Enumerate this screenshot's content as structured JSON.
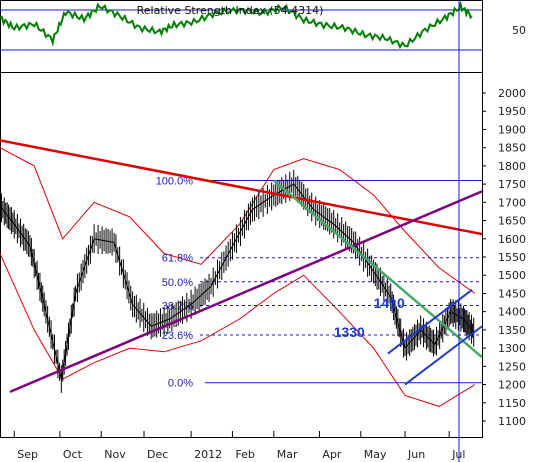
{
  "chart_data": [
    {
      "type": "line",
      "title": "Relative Strength Index (54.4314)",
      "y_tick_labels": [
        "50"
      ],
      "reference_lines": [
        30,
        70
      ],
      "ylim": [
        20,
        80
      ],
      "series": [
        {
          "color": "#008000",
          "x": [
            "2011-08-22",
            "2011-09-01",
            "2011-09-15",
            "2011-09-28",
            "2011-10-07",
            "2011-10-20",
            "2011-10-31",
            "2011-11-14",
            "2011-11-28",
            "2011-12-12",
            "2011-12-22",
            "2012-01-05",
            "2012-01-20",
            "2012-02-06",
            "2012-02-22",
            "2012-03-08",
            "2012-03-22",
            "2012-04-05",
            "2012-04-20",
            "2012-05-04",
            "2012-05-18",
            "2012-06-01",
            "2012-06-15",
            "2012-06-29",
            "2012-07-10",
            "2012-07-18"
          ],
          "values": [
            62,
            52,
            56,
            40,
            68,
            61,
            74,
            64,
            52,
            48,
            55,
            58,
            67,
            70,
            67,
            73,
            60,
            55,
            52,
            45,
            42,
            34,
            50,
            62,
            73,
            64
          ]
        }
      ]
    },
    {
      "type": "line",
      "y_tick_labels": [
        "2000",
        "1950",
        "1900",
        "1850",
        "1800",
        "1750",
        "1700",
        "1650",
        "1600",
        "1550",
        "1500",
        "1450",
        "1400",
        "1350",
        "1300",
        "1250",
        "1200",
        "1150",
        "1100"
      ],
      "ylim": [
        1070,
        2040
      ],
      "x_tick_labels": [
        "Sep",
        "Oct",
        "Nov",
        "Dec",
        "2012",
        "Feb",
        "Mar",
        "Apr",
        "May",
        "Jun",
        "Jul"
      ],
      "x_tick_dates": [
        "2011-09-01",
        "2011-10-03",
        "2011-11-01",
        "2011-12-01",
        "2012-01-03",
        "2012-02-01",
        "2012-03-01",
        "2012-04-02",
        "2012-05-01",
        "2012-06-01",
        "2012-07-02"
      ],
      "x_range": [
        "2011-08-22",
        "2012-07-25"
      ],
      "fibonacci": {
        "levels": [
          {
            "label": "100.0%",
            "value": 1760
          },
          {
            "label": "61.8%",
            "value": 1548
          },
          {
            "label": "50.0%",
            "value": 1482
          },
          {
            "label": "38.2%",
            "value": 1417
          },
          {
            "label": "23.6%",
            "value": 1336
          },
          {
            "label": "0.0%",
            "value": 1205
          }
        ],
        "start": "2012-03-01"
      },
      "annotations": [
        {
          "text": "1410",
          "x": "2012-05-10",
          "y": 1410
        },
        {
          "text": "1330",
          "x": "2012-04-12",
          "y": 1330
        }
      ],
      "trendlines": [
        {
          "name": "downtrend",
          "color": "#e00000",
          "points": [
            [
              "2011-08-22",
              1870
            ],
            [
              "2012-07-25",
              1613
            ]
          ]
        },
        {
          "name": "uptrend",
          "color": "#800080",
          "points": [
            [
              "2011-08-29",
              1180
            ],
            [
              "2012-07-25",
              1730
            ]
          ]
        },
        {
          "name": "decline",
          "color": "#44aa66",
          "points": [
            [
              "2012-03-01",
              1760
            ],
            [
              "2012-07-25",
              1275
            ]
          ]
        },
        {
          "name": "channel-upper",
          "color": "#1a3bd4",
          "points": [
            [
              "2012-05-20",
              1285
            ],
            [
              "2012-07-18",
              1460
            ]
          ]
        },
        {
          "name": "channel-lower",
          "color": "#1a3bd4",
          "points": [
            [
              "2012-06-01",
              1200
            ],
            [
              "2012-07-25",
              1360
            ]
          ]
        }
      ],
      "price": {
        "color": "#000000",
        "x": [
          "2011-08-22",
          "2011-09-01",
          "2011-09-12",
          "2011-09-22",
          "2011-10-04",
          "2011-10-14",
          "2011-10-27",
          "2011-11-10",
          "2011-11-23",
          "2011-12-06",
          "2011-12-19",
          "2012-01-03",
          "2012-01-17",
          "2012-02-01",
          "2012-02-15",
          "2012-03-01",
          "2012-03-15",
          "2012-03-29",
          "2012-04-12",
          "2012-04-26",
          "2012-05-10",
          "2012-05-22",
          "2012-06-01",
          "2012-06-12",
          "2012-06-22",
          "2012-07-03",
          "2012-07-12",
          "2012-07-20"
        ],
        "values": [
          1690,
          1640,
          1580,
          1420,
          1215,
          1450,
          1600,
          1590,
          1420,
          1360,
          1380,
          1420,
          1470,
          1580,
          1680,
          1720,
          1750,
          1680,
          1640,
          1590,
          1510,
          1440,
          1300,
          1350,
          1310,
          1400,
          1380,
          1340
        ]
      },
      "bollinger": {
        "color": "#e00000",
        "x": [
          "2011-08-22",
          "2011-09-15",
          "2011-10-05",
          "2011-10-27",
          "2011-11-21",
          "2011-12-15",
          "2012-01-10",
          "2012-02-06",
          "2012-03-01",
          "2012-03-22",
          "2012-04-16",
          "2012-05-10",
          "2012-06-01",
          "2012-06-25",
          "2012-07-20"
        ],
        "upper": [
          1850,
          1800,
          1600,
          1700,
          1660,
          1560,
          1530,
          1640,
          1790,
          1820,
          1790,
          1720,
          1620,
          1520,
          1450
        ],
        "lower": [
          1560,
          1350,
          1215,
          1260,
          1300,
          1290,
          1320,
          1380,
          1450,
          1500,
          1400,
          1300,
          1170,
          1140,
          1200
        ]
      }
    }
  ]
}
